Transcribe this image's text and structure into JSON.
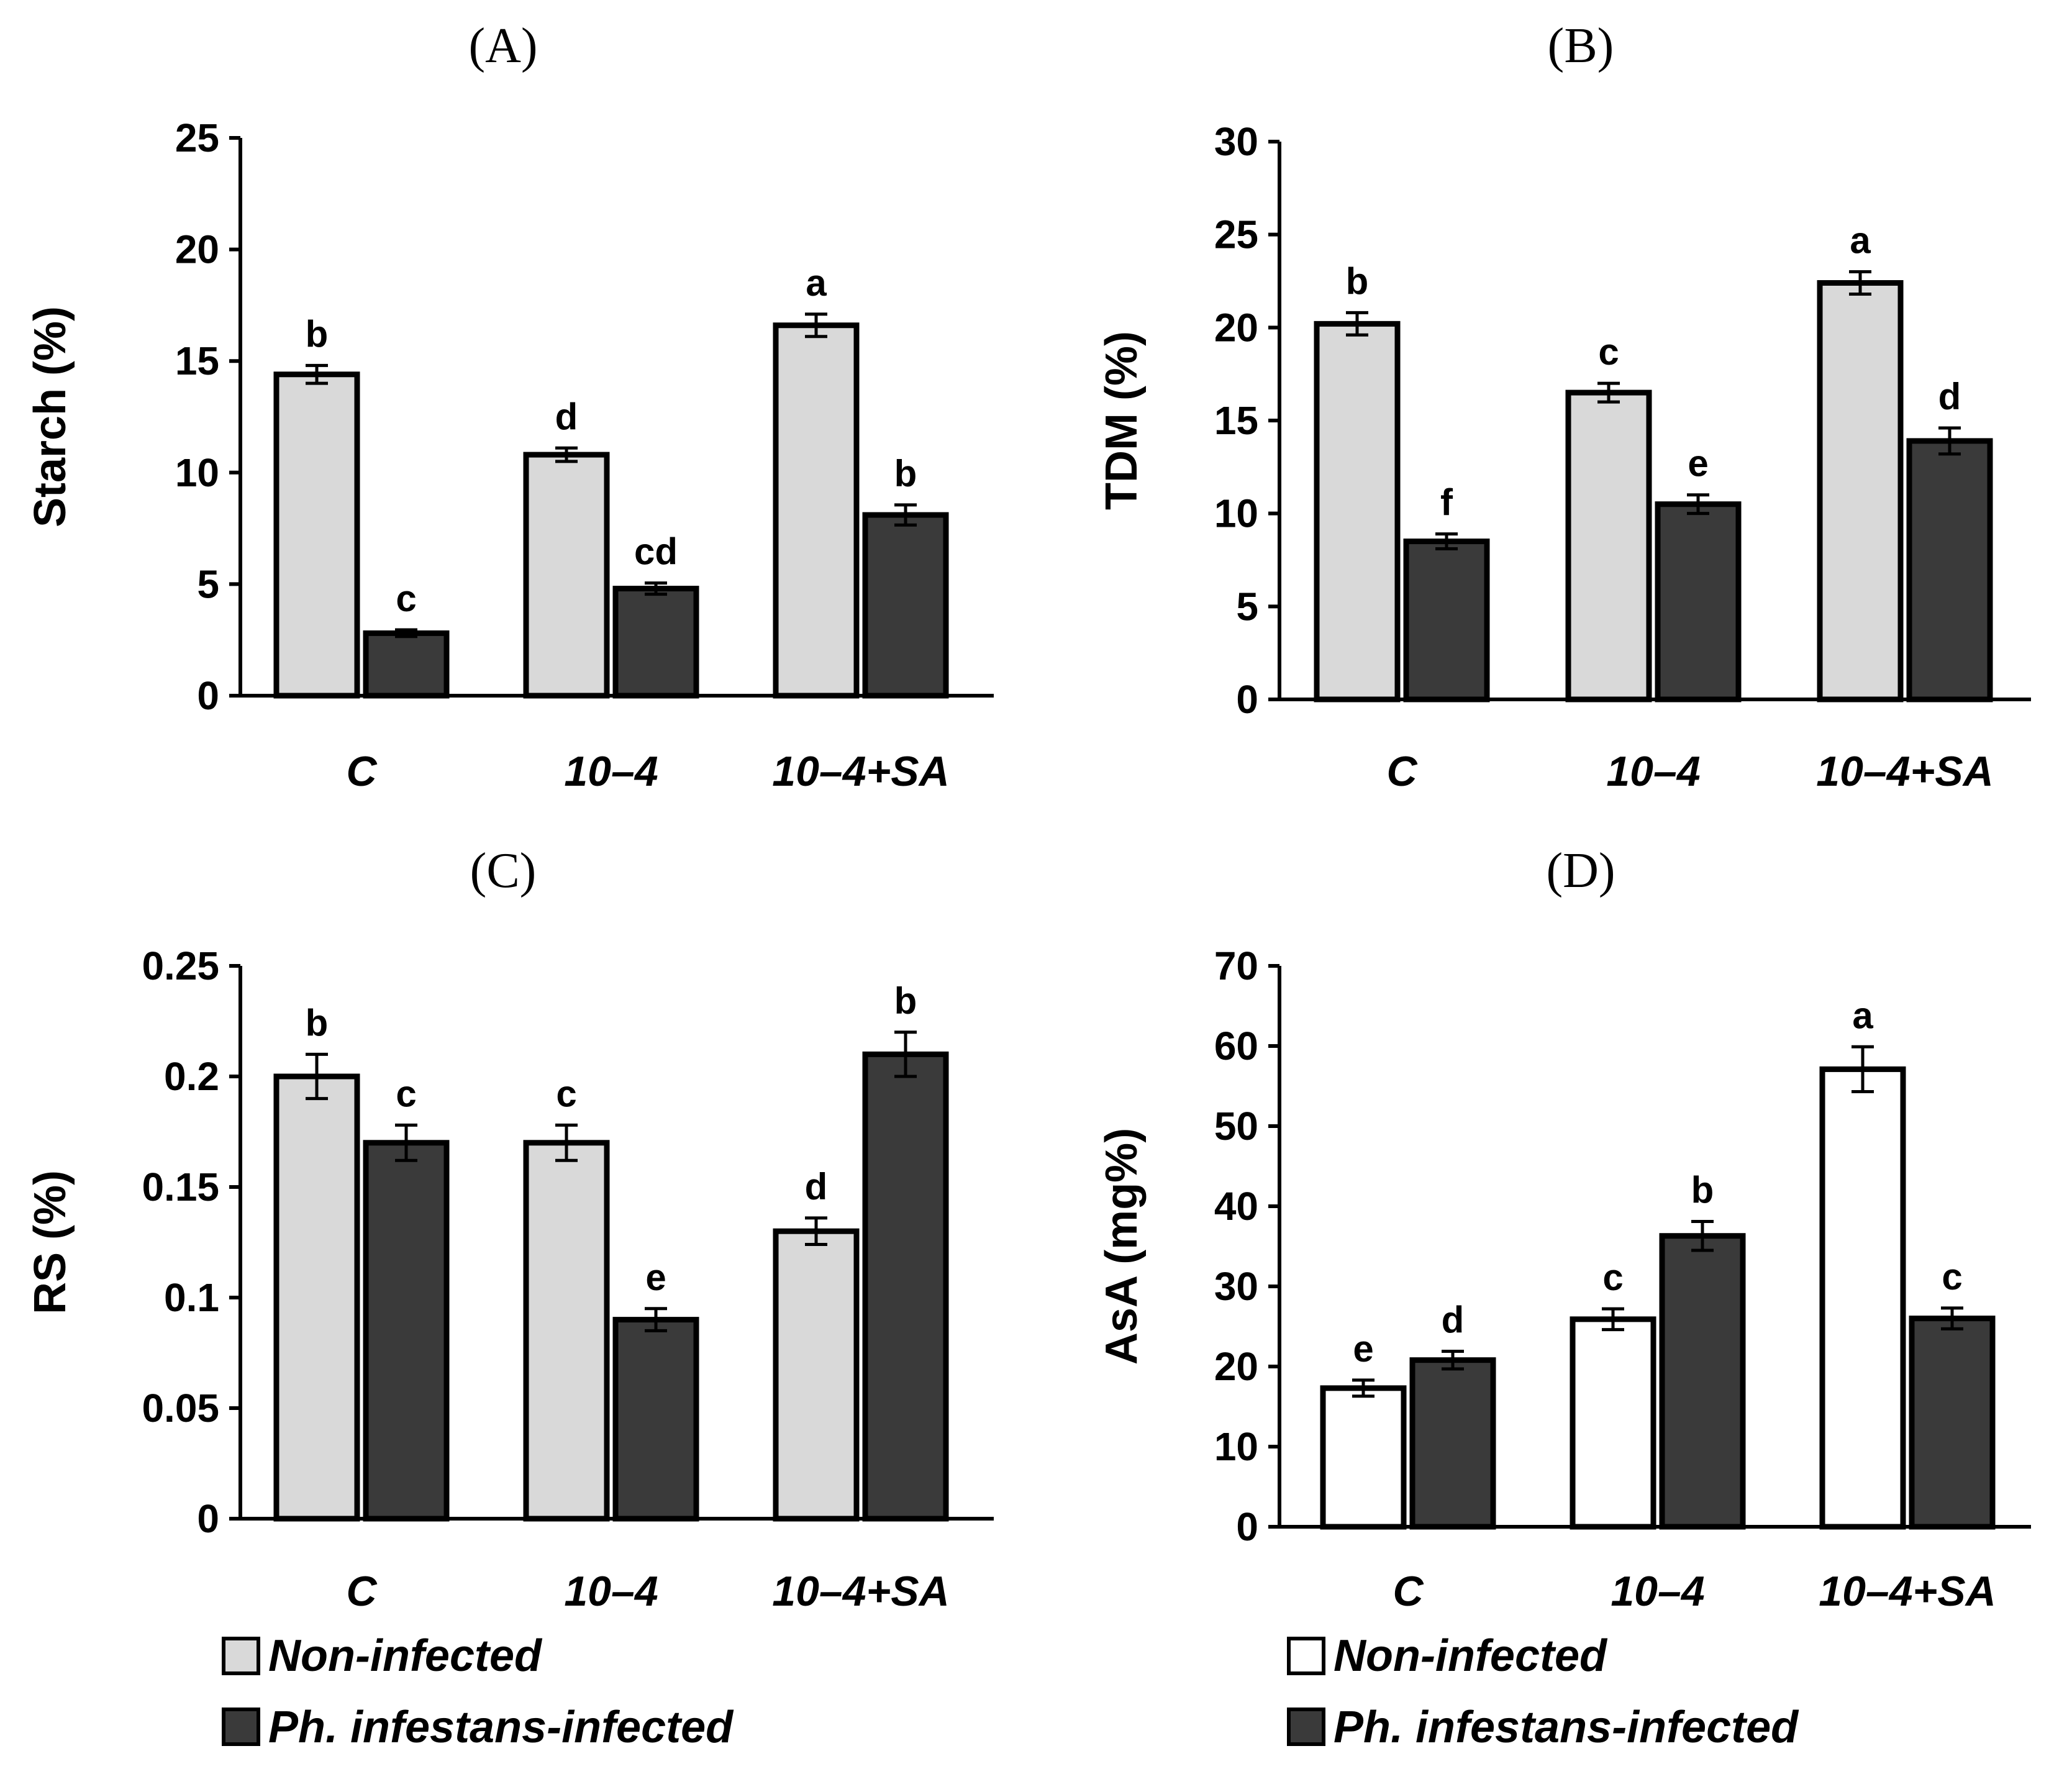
{
  "colors": {
    "non_infected": "#d9d9d9",
    "non_infected_D": "#ffffff",
    "infected": "#3a3a3a",
    "outline": "#000000"
  },
  "legend_left": {
    "items": [
      "Non-infected",
      "Ph. infestans-infected"
    ]
  },
  "legend_right": {
    "items": [
      "Non-infected",
      "Ph. infestans-infected"
    ]
  },
  "chart_data": [
    {
      "panel": "(A)",
      "type": "bar",
      "ylabel": "Starch (%)",
      "ylim": [
        0,
        25
      ],
      "yticks": [
        "0",
        "5",
        "10",
        "15",
        "20",
        "25"
      ],
      "categories": [
        "C",
        "10–4",
        "10–4+SA"
      ],
      "series": [
        {
          "name": "Non-infected",
          "values": [
            14.4,
            10.8,
            16.6
          ],
          "errors": [
            0.4,
            0.3,
            0.5
          ],
          "letters": [
            "b",
            "d",
            "a"
          ]
        },
        {
          "name": "Ph. infestans-infected",
          "values": [
            2.8,
            4.8,
            8.1
          ],
          "errors": [
            0.15,
            0.25,
            0.45
          ],
          "letters": [
            "c",
            "cd",
            "b"
          ]
        }
      ]
    },
    {
      "panel": "(B)",
      "type": "bar",
      "ylabel": "TDM (%)",
      "ylim": [
        0,
        30
      ],
      "yticks": [
        "0",
        "5",
        "10",
        "15",
        "20",
        "25",
        "30"
      ],
      "categories": [
        "C",
        "10–4",
        "10–4+SA"
      ],
      "series": [
        {
          "name": "Non-infected",
          "values": [
            20.2,
            16.5,
            22.4
          ],
          "errors": [
            0.6,
            0.5,
            0.6
          ],
          "letters": [
            "b",
            "c",
            "a"
          ]
        },
        {
          "name": "Ph. infestans-infected",
          "values": [
            8.5,
            10.5,
            13.9
          ],
          "errors": [
            0.4,
            0.5,
            0.7
          ],
          "letters": [
            "f",
            "e",
            "d"
          ]
        }
      ]
    },
    {
      "panel": "(C)",
      "type": "bar",
      "ylabel": "RS (%)",
      "ylim": [
        0,
        0.25
      ],
      "yticks": [
        "0",
        "0.05",
        "0.1",
        "0.15",
        "0.2",
        "0.25"
      ],
      "categories": [
        "C",
        "10–4",
        "10–4+SA"
      ],
      "series": [
        {
          "name": "Non-infected",
          "values": [
            0.2,
            0.17,
            0.13
          ],
          "errors": [
            0.01,
            0.008,
            0.006
          ],
          "letters": [
            "b",
            "c",
            "d"
          ]
        },
        {
          "name": "Ph. infestans-infected",
          "values": [
            0.17,
            0.09,
            0.21
          ],
          "errors": [
            0.008,
            0.005,
            0.01
          ],
          "letters": [
            "c",
            "e",
            "b"
          ]
        }
      ]
    },
    {
      "panel": "(D)",
      "type": "bar",
      "ylabel": "AsA (mg%)",
      "ylim": [
        0,
        70
      ],
      "yticks": [
        "0",
        "10",
        "20",
        "30",
        "40",
        "50",
        "60",
        "70"
      ],
      "categories": [
        "C",
        "10–4",
        "10–4+SA"
      ],
      "series": [
        {
          "name": "Non-infected",
          "values": [
            17.3,
            25.9,
            57.1
          ],
          "errors": [
            1.0,
            1.3,
            2.8
          ],
          "letters": [
            "e",
            "c",
            "a"
          ]
        },
        {
          "name": "Ph. infestans-infected",
          "values": [
            20.8,
            36.3,
            26.0
          ],
          "errors": [
            1.1,
            1.8,
            1.3
          ],
          "letters": [
            "d",
            "b",
            "c"
          ]
        }
      ]
    }
  ]
}
